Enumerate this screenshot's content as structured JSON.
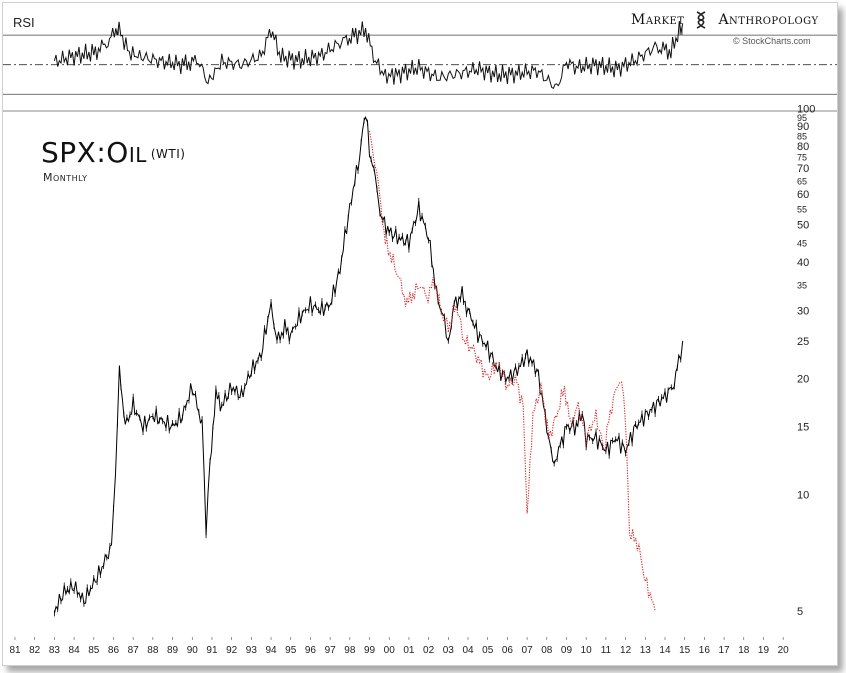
{
  "header": {
    "rsi_label": "RSI",
    "brand_left": "Market",
    "brand_right": "Anthropology",
    "source": "© StockCharts.com"
  },
  "chart_data": {
    "type": "line",
    "title": "SPX:Oil",
    "title_suffix": "(WTI)",
    "subtitle": "Monthly",
    "x_ticks": [
      "81",
      "82",
      "83",
      "84",
      "85",
      "86",
      "87",
      "88",
      "89",
      "90",
      "91",
      "92",
      "93",
      "94",
      "95",
      "96",
      "97",
      "98",
      "99",
      "00",
      "01",
      "02",
      "03",
      "04",
      "05",
      "06",
      "07",
      "08",
      "09",
      "10",
      "11",
      "12",
      "13",
      "14",
      "15",
      "16",
      "17",
      "18",
      "19",
      "20"
    ],
    "y_ticks": [
      100,
      95,
      90,
      85,
      80,
      75,
      70,
      65,
      60,
      55,
      50,
      45,
      40,
      35,
      30,
      25,
      20,
      15,
      10,
      5
    ],
    "y_scale": "log",
    "ylim": [
      4.6,
      102
    ],
    "xlim": [
      1981,
      2020.5
    ],
    "series": [
      {
        "color": "#000000",
        "style": "bar",
        "points": [
          [
            1983.0,
            5.0
          ],
          [
            1983.5,
            5.6
          ],
          [
            1984.0,
            5.8
          ],
          [
            1984.5,
            5.3
          ],
          [
            1985.0,
            5.9
          ],
          [
            1985.5,
            6.6
          ],
          [
            1985.9,
            7.4
          ],
          [
            1986.1,
            11
          ],
          [
            1986.3,
            21
          ],
          [
            1986.6,
            15
          ],
          [
            1987.0,
            17
          ],
          [
            1987.5,
            15
          ],
          [
            1988.0,
            16
          ],
          [
            1988.5,
            15.5
          ],
          [
            1989.0,
            15
          ],
          [
            1989.5,
            16
          ],
          [
            1990.0,
            19
          ],
          [
            1990.5,
            15
          ],
          [
            1990.7,
            8
          ],
          [
            1990.9,
            12
          ],
          [
            1991.2,
            18
          ],
          [
            1991.5,
            17
          ],
          [
            1992.0,
            19
          ],
          [
            1992.5,
            18
          ],
          [
            1993.0,
            21
          ],
          [
            1993.5,
            23
          ],
          [
            1994.0,
            31
          ],
          [
            1994.3,
            25
          ],
          [
            1994.7,
            27
          ],
          [
            1995.0,
            26
          ],
          [
            1995.5,
            29
          ],
          [
            1996.0,
            31
          ],
          [
            1996.5,
            30
          ],
          [
            1997.0,
            31
          ],
          [
            1997.5,
            38
          ],
          [
            1998.0,
            55
          ],
          [
            1998.5,
            75
          ],
          [
            1998.8,
            97
          ],
          [
            1999.0,
            78
          ],
          [
            1999.3,
            65
          ],
          [
            1999.6,
            52
          ],
          [
            2000.0,
            48
          ],
          [
            2000.5,
            46
          ],
          [
            2001.0,
            45
          ],
          [
            2001.5,
            55
          ],
          [
            2002.0,
            46
          ],
          [
            2002.4,
            33
          ],
          [
            2002.8,
            28
          ],
          [
            2003.0,
            25
          ],
          [
            2003.3,
            31
          ],
          [
            2003.7,
            33
          ],
          [
            2004.0,
            30
          ],
          [
            2004.5,
            26
          ],
          [
            2005.0,
            24
          ],
          [
            2005.5,
            21
          ],
          [
            2006.0,
            20
          ],
          [
            2006.5,
            21
          ],
          [
            2007.0,
            23
          ],
          [
            2007.5,
            21
          ],
          [
            2008.0,
            15
          ],
          [
            2008.3,
            12
          ],
          [
            2008.6,
            13
          ],
          [
            2009.0,
            15
          ],
          [
            2009.5,
            15
          ],
          [
            2009.8,
            16
          ],
          [
            2010.0,
            14
          ],
          [
            2010.5,
            14
          ],
          [
            2011.0,
            13
          ],
          [
            2011.5,
            14
          ],
          [
            2012.0,
            13
          ],
          [
            2012.5,
            15
          ],
          [
            2013.0,
            16
          ],
          [
            2013.5,
            17
          ],
          [
            2014.0,
            18
          ],
          [
            2014.4,
            19
          ],
          [
            2014.7,
            22
          ],
          [
            2014.9,
            25
          ]
        ]
      },
      {
        "color": "#d62020",
        "style": "dotted",
        "points": [
          [
            1999.0,
            88
          ],
          [
            1999.2,
            76
          ],
          [
            1999.5,
            60
          ],
          [
            1999.8,
            45
          ],
          [
            2000.2,
            40
          ],
          [
            2000.6,
            35
          ],
          [
            2000.9,
            31
          ],
          [
            2001.2,
            33
          ],
          [
            2001.6,
            35
          ],
          [
            2001.9,
            32
          ],
          [
            2002.3,
            36
          ],
          [
            2002.6,
            30
          ],
          [
            2003.0,
            27
          ],
          [
            2003.4,
            31
          ],
          [
            2003.8,
            25
          ],
          [
            2004.2,
            24
          ],
          [
            2004.6,
            22
          ],
          [
            2005.0,
            20
          ],
          [
            2005.5,
            22
          ],
          [
            2006.0,
            19
          ],
          [
            2006.4,
            20
          ],
          [
            2006.8,
            17
          ],
          [
            2007.0,
            8.5
          ],
          [
            2007.3,
            16
          ],
          [
            2007.7,
            19
          ],
          [
            2008.1,
            14
          ],
          [
            2008.5,
            16
          ],
          [
            2008.9,
            19
          ],
          [
            2009.2,
            15
          ],
          [
            2009.6,
            17
          ],
          [
            2010.0,
            14
          ],
          [
            2010.5,
            16
          ],
          [
            2010.9,
            13
          ],
          [
            2011.3,
            17
          ],
          [
            2011.7,
            20
          ],
          [
            2011.9,
            18
          ],
          [
            2012.2,
            8
          ],
          [
            2012.6,
            7.5
          ],
          [
            2013.0,
            6
          ],
          [
            2013.5,
            5
          ]
        ]
      }
    ],
    "rsi": {
      "upper": 70,
      "lower": 30,
      "mid": 50,
      "values": [
        [
          1983.0,
          52
        ],
        [
          1984.0,
          56
        ],
        [
          1985.0,
          58
        ],
        [
          1985.8,
          66
        ],
        [
          1986.2,
          76
        ],
        [
          1986.8,
          58
        ],
        [
          1987.5,
          55
        ],
        [
          1988.5,
          52
        ],
        [
          1989.5,
          50
        ],
        [
          1990.3,
          53
        ],
        [
          1990.8,
          38
        ],
        [
          1991.5,
          52
        ],
        [
          1992.5,
          50
        ],
        [
          1993.5,
          56
        ],
        [
          1994.0,
          74
        ],
        [
          1994.5,
          55
        ],
        [
          1995.5,
          53
        ],
        [
          1996.5,
          56
        ],
        [
          1997.5,
          65
        ],
        [
          1998.3,
          70
        ],
        [
          1998.8,
          74
        ],
        [
          1999.2,
          55
        ],
        [
          1999.8,
          42
        ],
        [
          2000.5,
          44
        ],
        [
          2001.5,
          48
        ],
        [
          2002.5,
          41
        ],
        [
          2003.5,
          44
        ],
        [
          2004.5,
          47
        ],
        [
          2005.5,
          43
        ],
        [
          2006.5,
          44
        ],
        [
          2007.5,
          46
        ],
        [
          2008.0,
          40
        ],
        [
          2008.5,
          34
        ],
        [
          2009.0,
          52
        ],
        [
          2009.5,
          48
        ],
        [
          2010.5,
          50
        ],
        [
          2011.5,
          47
        ],
        [
          2012.5,
          53
        ],
        [
          2013.5,
          62
        ],
        [
          2014.3,
          59
        ],
        [
          2014.9,
          78
        ]
      ]
    },
    "grid": false,
    "legend": "none"
  }
}
